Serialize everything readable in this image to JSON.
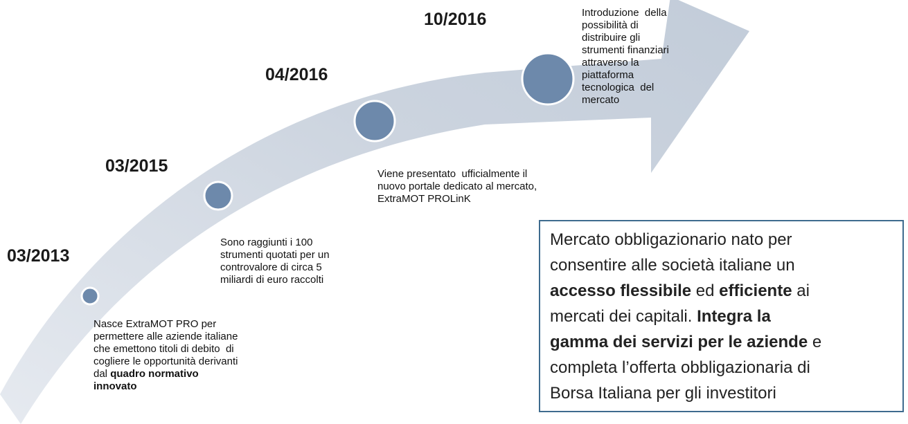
{
  "milestones": [
    {
      "date": "03/2013",
      "lines": [
        [
          {
            "text": "Nasce ExtraMOT PRO per"
          }
        ],
        [
          {
            "text": "permettere alle aziende italiane"
          }
        ],
        [
          {
            "text": "che emettono titoli di debito  di"
          }
        ],
        [
          {
            "text": "cogliere le opportunità derivanti"
          }
        ],
        [
          {
            "text": "dal "
          },
          {
            "text": "quadro normativo",
            "bold": true
          }
        ],
        [
          {
            "text": "innovato",
            "bold": true
          }
        ]
      ]
    },
    {
      "date": "03/2015",
      "lines": [
        [
          {
            "text": "Sono raggiunti i 100"
          }
        ],
        [
          {
            "text": "strumenti quotati per un"
          }
        ],
        [
          {
            "text": "controvalore di circa 5"
          }
        ],
        [
          {
            "text": "miliardi di euro raccolti"
          }
        ]
      ]
    },
    {
      "date": "04/2016",
      "lines": [
        [
          {
            "text": "Viene presentato  ufficialmente il"
          }
        ],
        [
          {
            "text": "nuovo portale dedicato al mercato,"
          }
        ],
        [
          {
            "text": "ExtraMOT PROLinK"
          }
        ]
      ]
    },
    {
      "date": "10/2016",
      "lines": [
        [
          {
            "text": "Introduzione  della"
          }
        ],
        [
          {
            "text": "possibilità di"
          }
        ],
        [
          {
            "text": "distribuire gli"
          }
        ],
        [
          {
            "text": "strumenti finanziari"
          }
        ],
        [
          {
            "text": "attraverso la"
          }
        ],
        [
          {
            "text": "piattaforma"
          }
        ],
        [
          {
            "text": "tecnologica  del"
          }
        ],
        [
          {
            "text": "mercato"
          }
        ]
      ]
    }
  ],
  "info_box": {
    "lines": [
      [
        {
          "text": "Mercato obbligazionario nato per"
        }
      ],
      [
        {
          "text": "consentire alle società italiane un"
        }
      ],
      [
        {
          "text": "accesso flessibile",
          "bold": true
        },
        {
          "text": " ed "
        },
        {
          "text": "efficiente",
          "bold": true
        },
        {
          "text": " ai"
        }
      ],
      [
        {
          "text": "mercati dei capitali. "
        },
        {
          "text": "Integra la",
          "bold": true
        }
      ],
      [
        {
          "text": "gamma dei servizi per le aziende",
          "bold": true
        },
        {
          "text": " e"
        }
      ],
      [
        {
          "text": "completa l’offerta obbligazionaria di"
        }
      ],
      [
        {
          "text": "Borsa Italiana per gli investitori"
        }
      ]
    ]
  }
}
